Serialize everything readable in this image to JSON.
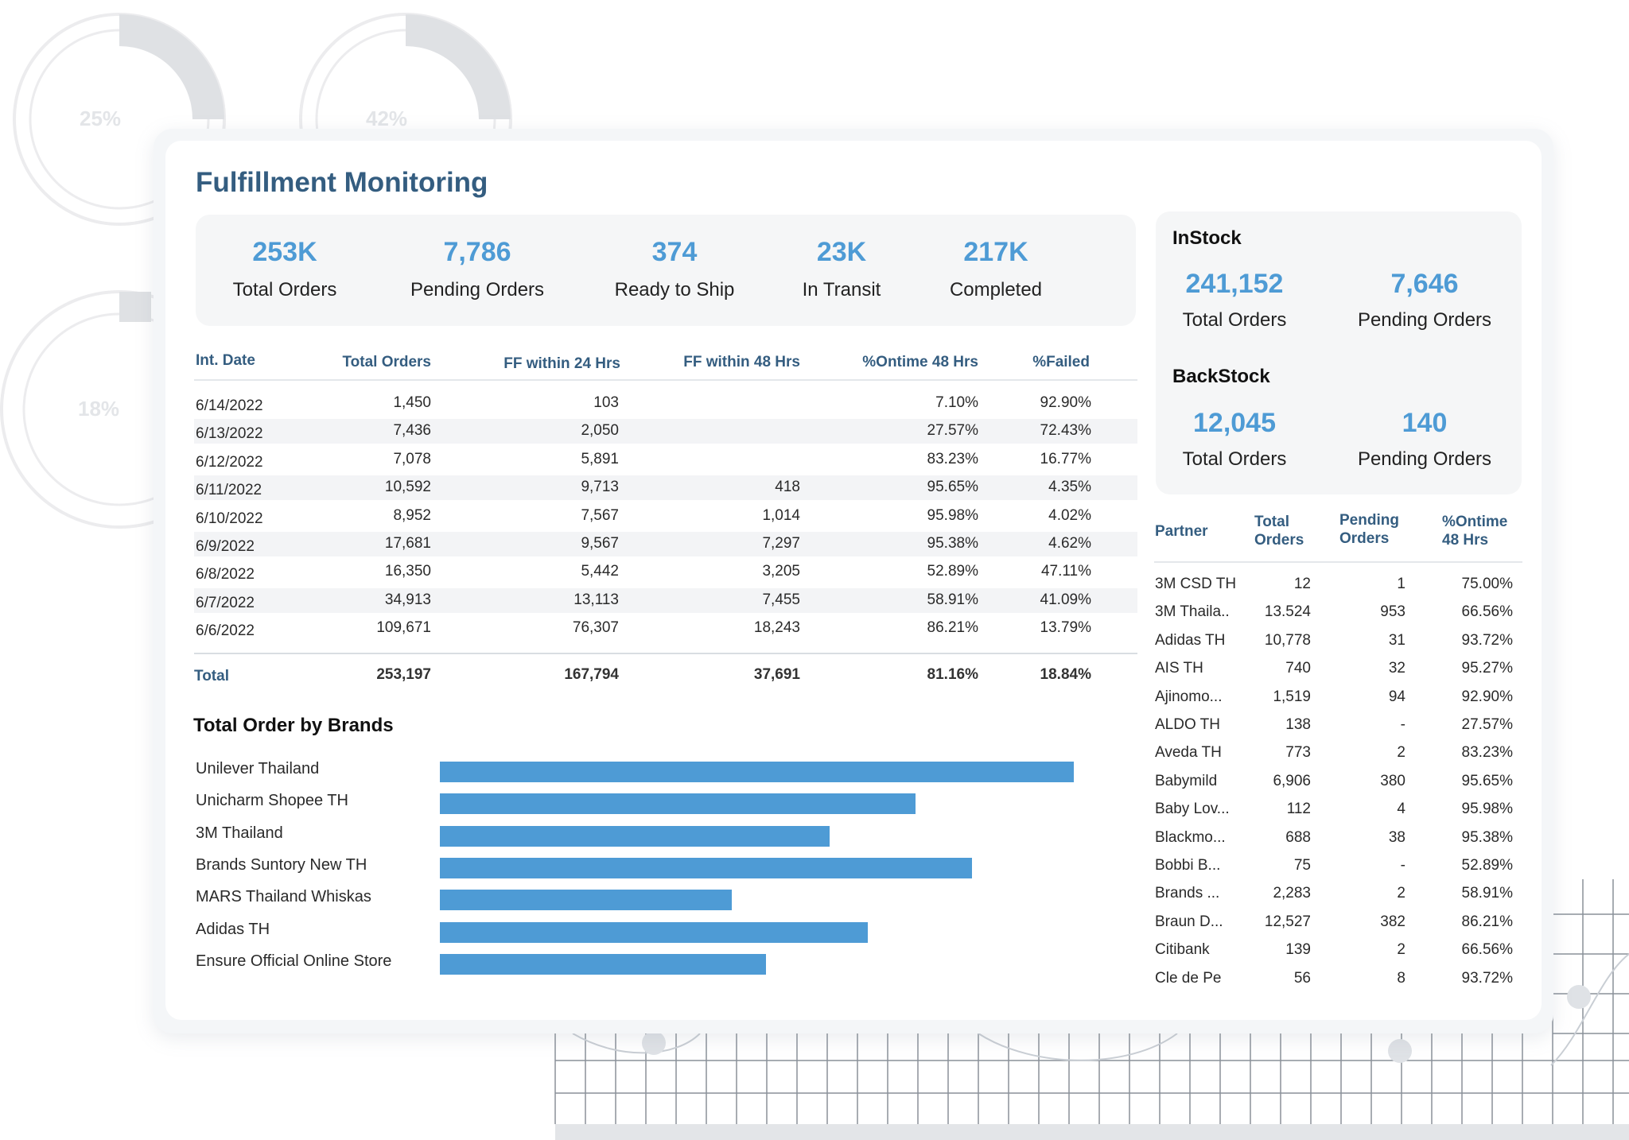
{
  "background": {
    "donuts": [
      {
        "label": "25%",
        "value": 0.25
      },
      {
        "label": "42%",
        "value": 0.42
      },
      {
        "label": "18%",
        "value": 0.18
      }
    ]
  },
  "title": "Fulfillment Monitoring",
  "kpis": [
    {
      "value": "253K",
      "label": "Total Orders"
    },
    {
      "value": "7,786",
      "label": "Pending Orders"
    },
    {
      "value": "374",
      "label": "Ready to Ship"
    },
    {
      "value": "23K",
      "label": "In Transit"
    },
    {
      "value": "217K",
      "label": "Completed"
    }
  ],
  "instock": {
    "title": "InStock",
    "total_value": "241,152",
    "total_label": "Total Orders",
    "pending_value": "7,646",
    "pending_label": "Pending Orders"
  },
  "backstock": {
    "title": "BackStock",
    "total_value": "12,045",
    "total_label": "Total Orders",
    "pending_value": "140",
    "pending_label": "Pending Orders"
  },
  "daily_table": {
    "headers": [
      "Int. Date",
      "Total Orders",
      "FF within 24 Hrs",
      "FF within 48 Hrs",
      "%Ontime 48 Hrs",
      "%Failed"
    ],
    "rows": [
      [
        "6/14/2022",
        "1,450",
        "103",
        "",
        "7.10%",
        "92.90%"
      ],
      [
        "6/13/2022",
        "7,436",
        "2,050",
        "",
        "27.57%",
        "72.43%"
      ],
      [
        "6/12/2022",
        "7,078",
        "5,891",
        "",
        "83.23%",
        "16.77%"
      ],
      [
        "6/11/2022",
        "10,592",
        "9,713",
        "418",
        "95.65%",
        "4.35%"
      ],
      [
        "6/10/2022",
        "8,952",
        "7,567",
        "1,014",
        "95.98%",
        "4.02%"
      ],
      [
        "6/9/2022",
        "17,681",
        "9,567",
        "7,297",
        "95.38%",
        "4.62%"
      ],
      [
        "6/8/2022",
        "16,350",
        "5,442",
        "3,205",
        "52.89%",
        "47.11%"
      ],
      [
        "6/7/2022",
        "34,913",
        "13,113",
        "7,455",
        "58.91%",
        "41.09%"
      ],
      [
        "6/6/2022",
        "109,671",
        "76,307",
        "18,243",
        "86.21%",
        "13.79%"
      ]
    ],
    "total": [
      "Total",
      "253,197",
      "167,794",
      "37,691",
      "81.16%",
      "18.84%"
    ]
  },
  "brands_title": "Total Order by Brands",
  "chart_data": {
    "type": "bar",
    "orientation": "horizontal",
    "title": "Total Order by Brands",
    "categories": [
      "Unilever Thailand",
      "Unicharm Shopee TH",
      "3M Thailand",
      "Brands Suntory New TH",
      "MARS Thailand Whiskas",
      "Adidas TH",
      "Ensure Official Online Store"
    ],
    "values": [
      100,
      75,
      61.5,
      84,
      46,
      67.5,
      51.5
    ],
    "xlim": [
      0,
      100
    ],
    "grid": false,
    "color": "#4e9bd5"
  },
  "partner_table": {
    "headers": [
      "Partner",
      "Total Orders",
      "Pending Orders",
      "%Ontime 48 Hrs"
    ],
    "rows": [
      [
        "3M CSD TH",
        "12",
        "1",
        "75.00%"
      ],
      [
        "3M Thaila..",
        "13.524",
        "953",
        "66.56%"
      ],
      [
        "Adidas TH",
        "10,778",
        "31",
        "93.72%"
      ],
      [
        "AIS TH",
        "740",
        "32",
        "95.27%"
      ],
      [
        "Ajinomo...",
        "1,519",
        "94",
        "92.90%"
      ],
      [
        "ALDO TH",
        "138",
        "-",
        "27.57%"
      ],
      [
        "Aveda TH",
        "773",
        "2",
        "83.23%"
      ],
      [
        "Babymild",
        "6,906",
        "380",
        "95.65%"
      ],
      [
        "Baby Lov...",
        "112",
        "4",
        "95.98%"
      ],
      [
        "Blackmo...",
        "688",
        "38",
        "95.38%"
      ],
      [
        "Bobbi B...",
        "75",
        "-",
        "52.89%"
      ],
      [
        "Brands ...",
        "2,283",
        "2",
        "58.91%"
      ],
      [
        "Braun D...",
        "12,527",
        "382",
        "86.21%"
      ],
      [
        "Citibank",
        "139",
        "2",
        "66.56%"
      ],
      [
        "Cle de Pe",
        "56",
        "8",
        "93.72%"
      ]
    ]
  }
}
